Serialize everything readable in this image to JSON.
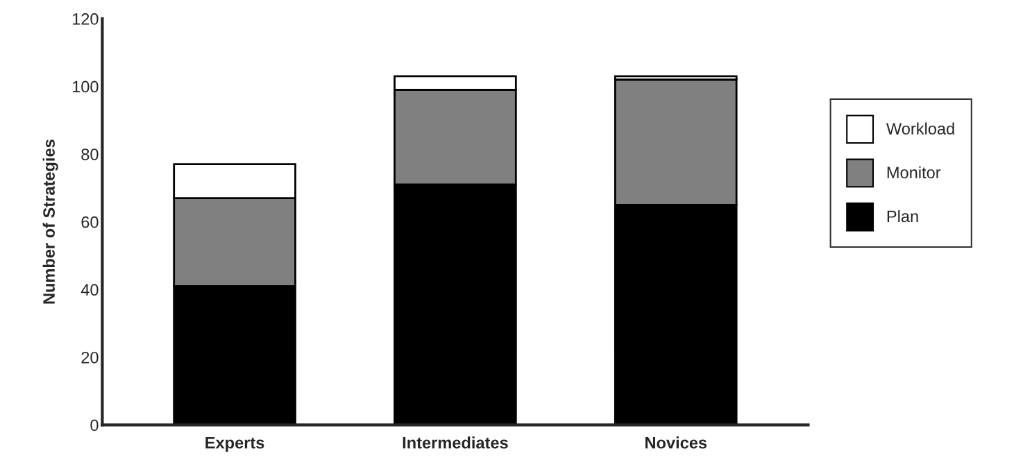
{
  "chart_data": {
    "type": "bar",
    "stacked": true,
    "ylabel": "Number of Strategies",
    "categories": [
      "Experts",
      "Intermediates",
      "Novices"
    ],
    "series": [
      {
        "name": "Plan",
        "color": "#000000",
        "values": [
          41,
          71,
          65
        ]
      },
      {
        "name": "Monitor",
        "color": "#808080",
        "values": [
          26,
          28,
          37
        ]
      },
      {
        "name": "Workload",
        "color": "#ffffff",
        "values": [
          10,
          4,
          1
        ]
      }
    ],
    "ylim": [
      0,
      120
    ],
    "yticks": [
      0,
      20,
      40,
      60,
      80,
      100,
      120
    ],
    "grid": false,
    "legend": "right"
  }
}
